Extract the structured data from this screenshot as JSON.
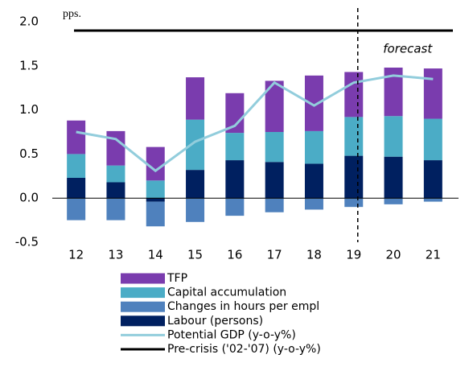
{
  "chart_data": {
    "type": "bar",
    "unit_label": "pps.",
    "annotation": "forecast",
    "categories": [
      "12",
      "13",
      "14",
      "15",
      "16",
      "17",
      "18",
      "19",
      "20",
      "21"
    ],
    "series": [
      {
        "name": "TFP",
        "color": "#7a3cae",
        "values": [
          0.38,
          0.39,
          0.38,
          0.48,
          0.45,
          0.58,
          0.63,
          0.51,
          0.55,
          0.57
        ]
      },
      {
        "name": "Capital accumulation",
        "color": "#4bacc6",
        "values": [
          0.27,
          0.19,
          0.2,
          0.57,
          0.31,
          0.34,
          0.37,
          0.44,
          0.46,
          0.47
        ]
      },
      {
        "name": "Changes in hours per empl",
        "color": "#4f81bd",
        "values": [
          -0.25,
          -0.25,
          -0.28,
          -0.27,
          -0.2,
          -0.16,
          -0.13,
          -0.1,
          -0.07,
          -0.04
        ]
      },
      {
        "name": "Labour (persons)",
        "color": "#002060",
        "values": [
          0.23,
          0.18,
          -0.04,
          0.32,
          0.43,
          0.41,
          0.39,
          0.48,
          0.47,
          0.43
        ]
      },
      {
        "name": "Potential GDP (y-o-y%)",
        "color": "#92cddc",
        "type": "line",
        "values": [
          0.75,
          0.67,
          0.31,
          0.64,
          0.82,
          1.31,
          1.05,
          1.31,
          1.39,
          1.35
        ]
      },
      {
        "name": "Pre-crisis ('02-'07) (y-o-y%)",
        "color": "#000000",
        "type": "line",
        "values": [
          1.9,
          1.9,
          1.9,
          1.9,
          1.9,
          1.9,
          1.9,
          1.9,
          1.9,
          1.9
        ]
      }
    ],
    "forecast_start": "19",
    "ylim": [
      -0.5,
      2.0
    ],
    "yticks": [
      -0.5,
      {
        "value": 0,
        "label": "0.0"
      },
      0.5,
      {
        "value": 1,
        "label": "1.0"
      },
      1.5,
      {
        "value": 2,
        "label": "2.0"
      }
    ],
    "grid": false
  }
}
